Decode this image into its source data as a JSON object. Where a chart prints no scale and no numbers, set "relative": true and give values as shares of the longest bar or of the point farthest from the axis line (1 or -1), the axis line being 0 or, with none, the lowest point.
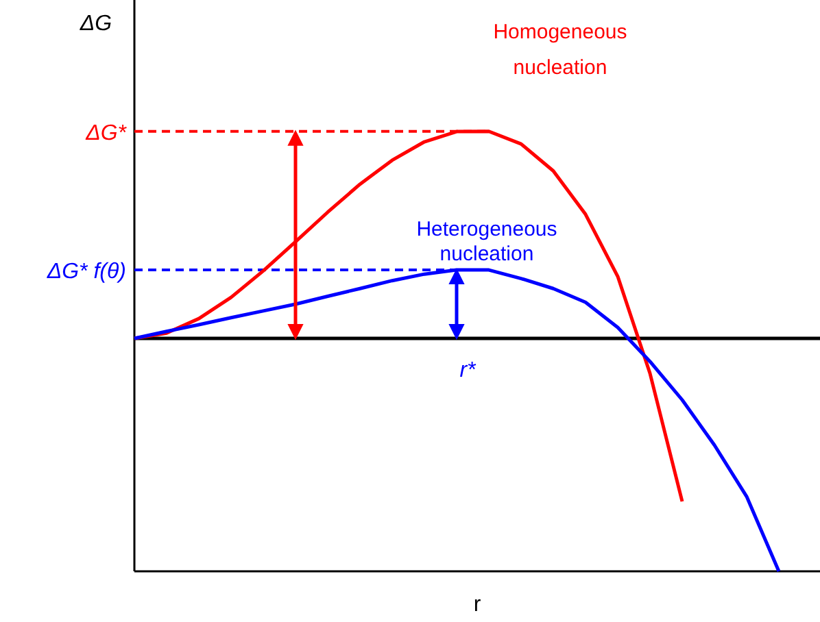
{
  "chart_data": {
    "type": "line",
    "relative": true,
    "xlabel": "r",
    "ylabel": "ΔG",
    "legend": false,
    "categories": [
      null,
      null,
      null,
      null,
      null,
      null,
      null,
      null,
      null,
      null,
      null,
      null,
      null,
      null,
      null,
      null,
      null,
      null,
      null,
      null,
      null
    ],
    "series": [
      {
        "name": "Homogeneous nucleation",
        "color": "#ff0000",
        "values": [
          0,
          0.023,
          0.085,
          0.176,
          0.29,
          0.415,
          0.542,
          0.662,
          0.765,
          0.844,
          0.888,
          0.889,
          0.835,
          0.719,
          0.533,
          0.266,
          -0.15,
          -0.7,
          null,
          null,
          null
        ]
      },
      {
        "name": "Heterogeneous nucleation",
        "color": "#0000ff",
        "values": [
          0,
          0.03,
          0.059,
          0.089,
          0.118,
          0.147,
          0.181,
          0.214,
          0.248,
          0.276,
          0.294,
          0.294,
          0.257,
          0.214,
          0.155,
          0.047,
          -0.099,
          -0.264,
          -0.458,
          -0.679,
          -1
        ]
      }
    ],
    "ref_lines": [
      {
        "axis": "y",
        "value": 0.889,
        "label": "ΔG*",
        "color": "#ff0000",
        "line_style": "dashed"
      },
      {
        "axis": "y",
        "value": 0.294,
        "label": "ΔG* f(θ)",
        "color": "#0000ff",
        "line_style": "dashed"
      }
    ],
    "annotations": [
      "r*"
    ]
  }
}
